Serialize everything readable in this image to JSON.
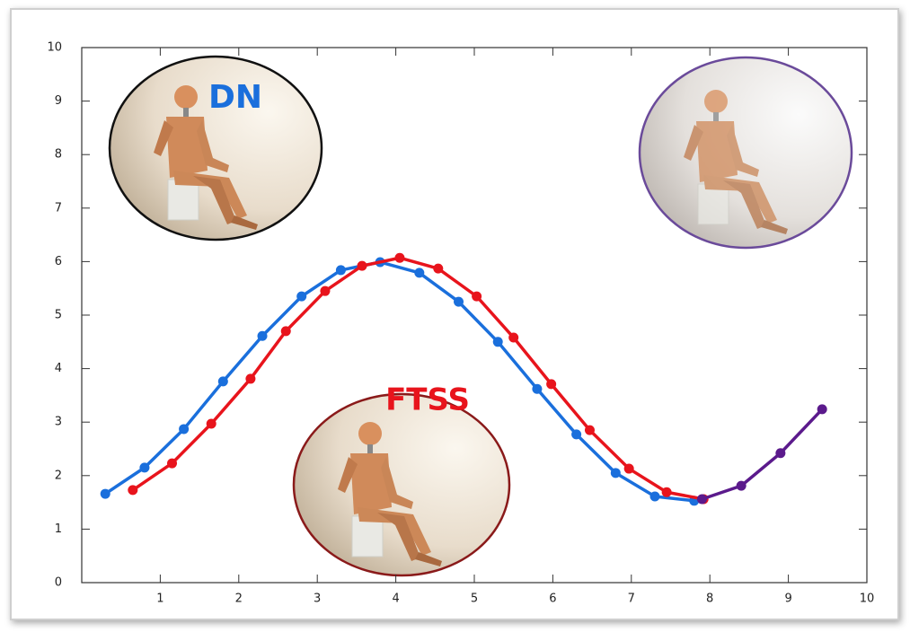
{
  "chart_data": {
    "type": "line",
    "xlim": [
      0,
      10
    ],
    "ylim": [
      0,
      10
    ],
    "xticks": [
      1,
      2,
      3,
      4,
      5,
      6,
      7,
      8,
      9,
      10
    ],
    "yticks": [
      0,
      1,
      2,
      3,
      4,
      5,
      6,
      7,
      8,
      9,
      10
    ],
    "series": [
      {
        "name": "DN",
        "color": "#1a6fdc",
        "x": [
          0.3,
          0.8,
          1.3,
          1.8,
          2.3,
          2.8,
          3.3,
          3.8,
          4.3,
          4.8,
          5.3,
          5.8,
          6.3,
          6.8,
          7.3,
          7.8
        ],
        "values": [
          1.66,
          2.15,
          2.87,
          3.76,
          4.61,
          5.35,
          5.84,
          5.99,
          5.79,
          5.25,
          4.5,
          3.62,
          2.77,
          2.05,
          1.61,
          1.53
        ]
      },
      {
        "name": "FTSS",
        "color": "#e8141c",
        "x": [
          0.65,
          1.15,
          1.65,
          2.15,
          2.6,
          3.1,
          3.57,
          4.05,
          4.54,
          5.03,
          5.5,
          5.98,
          6.47,
          6.97,
          7.45,
          7.92
        ],
        "values": [
          1.73,
          2.23,
          2.97,
          3.81,
          4.7,
          5.45,
          5.92,
          6.07,
          5.87,
          5.35,
          4.58,
          3.71,
          2.85,
          2.13,
          1.69,
          1.56
        ]
      },
      {
        "color": "#5b1a8c",
        "x": [
          7.9,
          8.4,
          8.9,
          9.43
        ],
        "values": [
          1.56,
          1.81,
          2.42,
          3.24
        ]
      }
    ]
  }
}
